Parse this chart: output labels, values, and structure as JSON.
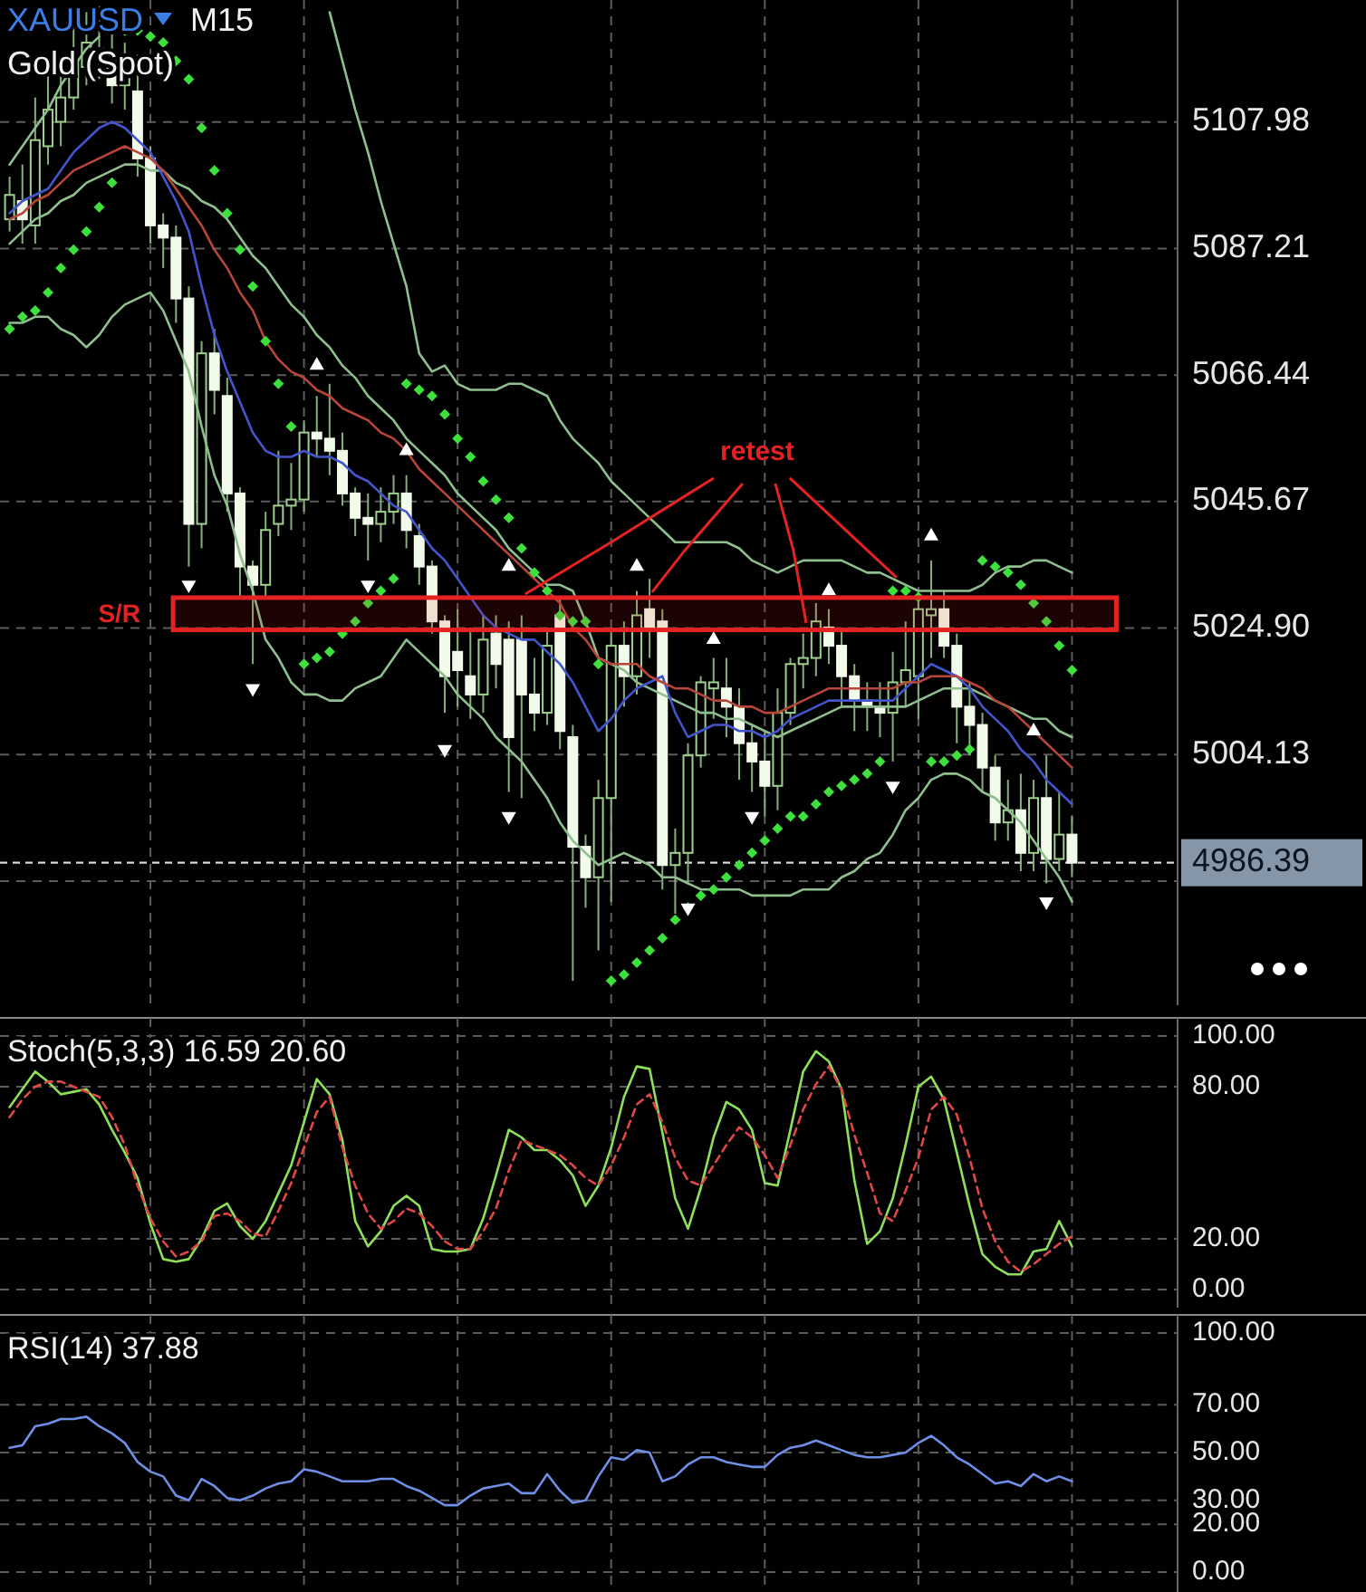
{
  "chart_data": [
    {
      "type": "candlestick",
      "title": "XAUUSD",
      "subtitle": "Gold (Spot)",
      "annotations": [
        "M15",
        "retest"
      ],
      "categories": [
        null,
        null,
        null,
        null,
        null,
        null,
        null,
        null,
        null,
        null,
        null,
        null,
        null,
        null,
        null,
        null,
        null,
        null,
        null,
        null,
        null,
        null,
        null,
        null,
        null,
        null,
        null,
        null,
        null,
        null,
        null,
        null,
        null,
        null,
        null,
        null,
        null,
        null,
        null,
        null,
        null,
        null,
        null,
        null,
        null,
        null,
        null,
        null,
        null,
        null,
        null,
        null,
        null,
        null,
        null,
        null,
        null,
        null,
        null,
        null,
        null,
        null,
        null,
        null,
        null,
        null,
        null,
        null,
        null,
        null,
        null,
        null,
        null,
        null,
        null,
        null,
        null,
        null,
        null,
        null,
        null,
        null,
        null,
        null
      ],
      "ohlc": [
        [
          5092,
          5099,
          5090,
          5096
        ],
        [
          5095,
          5101,
          5088,
          5092
        ],
        [
          5091,
          5112,
          5088,
          5105
        ],
        [
          5104,
          5116,
          5101,
          5110
        ],
        [
          5108,
          5118,
          5104,
          5112
        ],
        [
          5112,
          5124,
          5110,
          5118
        ],
        [
          5117,
          5126,
          5114,
          5121
        ],
        [
          5120,
          5127,
          5115,
          5119
        ],
        [
          5119,
          5123,
          5111,
          5114
        ],
        [
          5114,
          5121,
          5110,
          5116
        ],
        [
          5113,
          5119,
          5099,
          5102
        ],
        [
          5102,
          5104,
          5088,
          5091
        ],
        [
          5091,
          5093,
          5084,
          5089
        ],
        [
          5089,
          5091,
          5075,
          5079
        ],
        [
          5079,
          5081,
          5035,
          5042
        ],
        [
          5042,
          5072,
          5038,
          5070
        ],
        [
          5070,
          5074,
          5060,
          5064
        ],
        [
          5063,
          5066,
          5044,
          5047
        ],
        [
          5047,
          5048,
          5030,
          5035
        ],
        [
          5035,
          5036,
          5019,
          5032
        ],
        [
          5032,
          5044,
          5030,
          5041
        ],
        [
          5042,
          5054,
          5040,
          5045
        ],
        [
          5045,
          5052,
          5041,
          5046
        ],
        [
          5046,
          5059,
          5044,
          5057
        ],
        [
          5057,
          5063,
          5053,
          5056
        ],
        [
          5056,
          5065,
          5050,
          5054
        ],
        [
          5054,
          5057,
          5045,
          5047
        ],
        [
          5047,
          5048,
          5040,
          5043
        ],
        [
          5043,
          5047,
          5036,
          5042
        ],
        [
          5042,
          5048,
          5039,
          5044
        ],
        [
          5044,
          5050,
          5042,
          5047
        ],
        [
          5047,
          5050,
          5038,
          5041
        ],
        [
          5040,
          5042,
          5032,
          5035
        ],
        [
          5035,
          5036,
          5024,
          5026
        ],
        [
          5026,
          5027,
          5011,
          5017
        ],
        [
          5021,
          5028,
          5012,
          5018
        ],
        [
          5017,
          5025,
          5010,
          5014
        ],
        [
          5014,
          5027,
          5011,
          5023
        ],
        [
          5024,
          5027,
          5015,
          5019
        ],
        [
          5023,
          5026,
          4998,
          5007
        ],
        [
          5023,
          5027,
          4997,
          5014
        ],
        [
          5014,
          5020,
          5008,
          5011
        ],
        [
          5011,
          5025,
          5009,
          5022
        ],
        [
          5027,
          5030,
          5005,
          5008
        ],
        [
          5007,
          5009,
          4967,
          4989
        ],
        [
          4989,
          4991,
          4979,
          4984
        ],
        [
          4984,
          5000,
          4972,
          4997
        ],
        [
          4997,
          5025,
          4980,
          5022
        ],
        [
          5022,
          5026,
          5012,
          5017
        ],
        [
          5017,
          5031,
          5014,
          5027
        ],
        [
          5028,
          5033,
          5020,
          5025
        ],
        [
          5026,
          5028,
          4982,
          4986
        ],
        [
          4986,
          4992,
          4978,
          4988
        ],
        [
          4988,
          5006,
          4983,
          5004
        ],
        [
          5004,
          5017,
          5002,
          5016
        ],
        [
          5015,
          5020,
          5010,
          5016
        ],
        [
          5015,
          5020,
          5007,
          5012
        ],
        [
          5012,
          5015,
          5000,
          5006
        ],
        [
          5006,
          5009,
          4998,
          5003
        ],
        [
          5003,
          5008,
          4994,
          4999
        ],
        [
          4999,
          5015,
          4995,
          5011
        ],
        [
          5011,
          5020,
          5009,
          5019
        ],
        [
          5019,
          5024,
          5015,
          5020
        ],
        [
          5020,
          5029,
          5017,
          5026
        ],
        [
          5025,
          5028,
          5019,
          5022
        ],
        [
          5022,
          5025,
          5012,
          5017
        ],
        [
          5017,
          5019,
          5008,
          5013
        ],
        [
          5013,
          5016,
          5008,
          5012
        ],
        [
          5012,
          5016,
          5007,
          5011
        ],
        [
          5011,
          5021,
          5003,
          5016
        ],
        [
          5016,
          5026,
          5012,
          5018
        ],
        [
          5017,
          5030,
          5010,
          5028
        ],
        [
          5027,
          5036,
          5020,
          5028
        ],
        [
          5028,
          5031,
          5020,
          5022
        ],
        [
          5022,
          5024,
          5006,
          5012
        ],
        [
          5012,
          5016,
          5004,
          5009
        ],
        [
          5009,
          5011,
          4998,
          5002
        ],
        [
          5002,
          5004,
          4990,
          4993
        ],
        [
          4993,
          5000,
          4990,
          4995
        ],
        [
          4995,
          5001,
          4985,
          4988
        ],
        [
          4988,
          5000,
          4985,
          4997
        ],
        [
          4997,
          5004,
          4983,
          4987
        ],
        [
          4987,
          4998,
          4985,
          4991
        ],
        [
          4991,
          4994,
          4984,
          4986.39
        ]
      ],
      "series": [
        {
          "type": "line",
          "color": "#8fbf8f",
          "values": [
            5101,
            5104,
            5107,
            5110,
            5114,
            5117,
            5120,
            5122,
            null,
            null,
            null,
            null,
            null,
            null,
            null,
            null,
            null,
            null,
            null,
            null,
            null,
            null,
            null,
            null,
            null,
            5126,
            5118,
            5110,
            5103,
            5095,
            5088,
            5081,
            5070,
            5067,
            5068,
            5065,
            5064,
            5064,
            5064,
            5065,
            5065,
            5064,
            5063,
            5059,
            5056,
            5054,
            5052,
            5049,
            5047,
            5045,
            5043,
            5041,
            5039,
            5039,
            5039,
            5039,
            5039,
            5038,
            5036,
            5035,
            5034,
            5035,
            5036,
            5036,
            5036,
            5036,
            5035,
            5034,
            5034,
            5033,
            5032,
            5031,
            5031,
            5031,
            5031,
            5031,
            5032,
            5034,
            5035,
            5035,
            5036,
            5036,
            5035,
            5034
          ]
        },
        {
          "type": "line",
          "color": "#8fbf8f",
          "values": [
            5088,
            5090,
            5092,
            5093,
            5095,
            5096,
            5098,
            5099,
            5100,
            5101,
            5101,
            5100,
            5100,
            5098,
            5097,
            5095,
            5094,
            5092,
            5089,
            5086,
            5084,
            5081,
            5078,
            5076,
            5073,
            5071,
            5068,
            5066,
            5063,
            5061,
            5059,
            5056,
            5054,
            5052,
            5050,
            5047,
            5045,
            5043,
            5041,
            5038,
            5036,
            5034,
            5032,
            5032,
            5031,
            5026,
            5020,
            5019,
            5018,
            5016,
            5015,
            5014,
            5013,
            5012,
            5011,
            5011,
            5010,
            5010,
            5009,
            5008,
            5007,
            5008,
            5009,
            5010,
            5011,
            5012,
            5012,
            5012,
            5012,
            5012,
            5012,
            5013,
            5014,
            5015,
            5015,
            5015,
            5014,
            5013,
            5012,
            5011,
            5010,
            5010,
            5008,
            5007
          ]
        },
        {
          "type": "line",
          "color": "#8fbf8f",
          "values": [
            5075,
            5075,
            5076,
            5076,
            5074,
            5073,
            5071,
            5073,
            5076,
            5078,
            5079,
            5080,
            5077,
            5072,
            5067,
            5058,
            5050,
            5045,
            5037,
            5031,
            5023,
            5020,
            5016,
            5014,
            5014,
            5013,
            5013,
            5015,
            5016,
            5017,
            5020,
            5023,
            5021,
            5019,
            5017,
            5014,
            5012,
            5010,
            5007,
            5005,
            5003,
            5000,
            4997,
            4993,
            4990,
            4988,
            4986,
            4987,
            4988,
            4987,
            4986,
            4984,
            4984,
            4983,
            4982,
            4982,
            4982,
            4982,
            4981,
            4981,
            4981,
            4981,
            4982,
            4982,
            4982,
            4984,
            4985,
            4987,
            4988,
            4991,
            4995,
            4997,
            5000,
            5001,
            5001,
            5000,
            4998,
            4997,
            4995,
            4993,
            4990,
            4987,
            4984,
            4980
          ]
        },
        {
          "type": "line",
          "color": "#4455cc",
          "values": [
            5093,
            5095,
            5096,
            5097,
            5100,
            5103,
            5105,
            5107,
            5108,
            5107,
            5105,
            5103,
            5099,
            5095,
            5090,
            5081,
            5073,
            5067,
            5062,
            5057,
            5054,
            5053,
            5053,
            5054,
            5053,
            5053,
            5052,
            5050,
            5049,
            5047,
            5045,
            5044,
            5041,
            5038,
            5036,
            5033,
            5030,
            5027,
            5025,
            5024,
            5023,
            5023,
            5021,
            5019,
            5016,
            5012,
            5008,
            5010,
            5013,
            5015,
            5016,
            5017,
            5011,
            5007,
            5008,
            5009,
            5009,
            5008,
            5008,
            5007,
            5008,
            5010,
            5011,
            5012,
            5013,
            5013,
            5013,
            5013,
            5013,
            5013,
            5015,
            5017,
            5019,
            5018,
            5017,
            5015,
            5012,
            5010,
            5008,
            5005,
            5003,
            5000,
            4998,
            4996
          ]
        },
        {
          "type": "line",
          "color": "#b8453a",
          "values": [
            5092,
            5093,
            5095,
            5096,
            5098,
            5100,
            5101,
            5102,
            5103,
            5104,
            5103,
            5102,
            5100,
            5097,
            5094,
            5091,
            5087,
            5084,
            5080,
            5077,
            5072,
            5069,
            5067,
            5066,
            5064,
            5063,
            5061,
            5060,
            5059,
            5057,
            5056,
            5054,
            5051,
            5049,
            5047,
            5045,
            5043,
            5041,
            5039,
            5037,
            5035,
            5033,
            5031,
            5029,
            5025,
            5023,
            5020,
            5019,
            5019,
            5019,
            5017,
            5016,
            5015,
            5015,
            5014,
            5013,
            5013,
            5012,
            5012,
            5011,
            5011,
            5012,
            5013,
            5014,
            5015,
            5015,
            5015,
            5015,
            5015,
            5015,
            5016,
            5016,
            5017,
            5017,
            5017,
            5016,
            5015,
            5013,
            5012,
            5010,
            5008,
            5006,
            5004,
            5002
          ]
        },
        {
          "type": "scatter",
          "marker": "diamond",
          "color": "#3ee03e",
          "values": [
            5074,
            5076,
            5077,
            5080,
            5084,
            5087,
            5090,
            5094,
            5098,
            5123,
            5123,
            5122,
            5121,
            5118,
            5115,
            5107,
            5100,
            5093,
            5087,
            5081,
            5072,
            5065,
            5058,
            5019,
            5020,
            5021,
            5024,
            5026,
            5029,
            5031,
            5033,
            5065,
            5064,
            5063,
            5060,
            5056,
            5053,
            5049,
            5046,
            5043,
            5038,
            5034,
            5031,
            5027,
            5026,
            5026,
            5019,
            4967,
            4968,
            4970,
            4972,
            4974,
            4977,
            4979,
            4981,
            4982,
            4984,
            4986,
            4988,
            4990,
            4992,
            4994,
            4994,
            4996,
            4998,
            4999,
            5000,
            5001,
            5003,
            5031,
            5031,
            5030,
            5003,
            5003,
            5004,
            5005,
            5036,
            5035,
            5034,
            5032,
            5029,
            5026,
            5022,
            5018
          ]
        },
        {
          "type": "scatter",
          "marker": "triangle",
          "color": "#ffffff",
          "values": [
            null,
            null,
            null,
            null,
            null,
            null,
            null,
            null,
            null,
            null,
            null,
            null,
            null,
            null,
            null,
            null,
            null,
            null,
            null,
            null,
            null,
            null,
            null,
            null,
            5068,
            null,
            null,
            null,
            null,
            null,
            null,
            5054,
            null,
            null,
            null,
            null,
            null,
            null,
            null,
            5035,
            null,
            null,
            null,
            null,
            null,
            null,
            null,
            null,
            null,
            5035,
            null,
            null,
            null,
            null,
            null,
            5023,
            null,
            null,
            null,
            null,
            null,
            null,
            null,
            null,
            5031,
            null,
            null,
            null,
            null,
            null,
            null,
            null,
            5040,
            null,
            null,
            null,
            null,
            null,
            null,
            null,
            5008,
            null,
            null,
            null
          ]
        },
        {
          "type": "scatter",
          "marker": "triangle",
          "color": "#ffffff",
          "values": [
            null,
            null,
            null,
            null,
            null,
            null,
            null,
            null,
            null,
            null,
            null,
            null,
            null,
            null,
            5032,
            null,
            null,
            null,
            null,
            5015,
            null,
            null,
            null,
            null,
            null,
            null,
            null,
            null,
            5032,
            null,
            null,
            null,
            null,
            null,
            5005,
            null,
            null,
            null,
            null,
            4994,
            null,
            null,
            null,
            null,
            null,
            null,
            null,
            null,
            null,
            null,
            null,
            null,
            null,
            4979,
            null,
            null,
            null,
            null,
            4994,
            null,
            null,
            null,
            null,
            null,
            null,
            null,
            null,
            null,
            null,
            4999,
            null,
            null,
            null,
            null,
            null,
            null,
            null,
            null,
            null,
            null,
            null,
            4980,
            null,
            null
          ]
        }
      ],
      "ylim": [
        4963,
        5128
      ],
      "yticks": [
        {
          "value": 4983.36,
          "label": null
        },
        5004.13,
        {
          "value": 5024.9,
          "label": "5024.90"
        },
        5045.67,
        5066.44,
        5087.21,
        5107.98
      ],
      "grid": true,
      "ref_lines": [
        {
          "axis": "y",
          "value": 4986.39,
          "label": "4986.39",
          "color": "#d8d8d8",
          "line_style": "dashed"
        }
      ],
      "bands": [
        {
          "axis": "y",
          "from": 5024.6,
          "to": 5029.9,
          "label": "S/R",
          "color": "#e52222"
        }
      ]
    },
    {
      "type": "line",
      "title": "Stoch(5,3,3) 16.59 20.60",
      "categories": [
        null,
        null,
        null,
        null,
        null,
        null,
        null,
        null,
        null,
        null,
        null,
        null,
        null,
        null,
        null,
        null,
        null,
        null,
        null,
        null,
        null,
        null,
        null,
        null,
        null,
        null,
        null,
        null,
        null,
        null,
        null,
        null,
        null,
        null,
        null,
        null,
        null,
        null,
        null,
        null,
        null,
        null,
        null,
        null,
        null,
        null,
        null,
        null,
        null,
        null,
        null,
        null,
        null,
        null,
        null,
        null,
        null,
        null,
        null,
        null,
        null,
        null,
        null,
        null,
        null,
        null,
        null,
        null,
        null,
        null,
        null,
        null,
        null,
        null,
        null,
        null,
        null,
        null,
        null,
        null,
        null,
        null,
        null,
        null
      ],
      "series": [
        {
          "color": "#8ee05a",
          "values": [
            72,
            79,
            86,
            82,
            77,
            78,
            79,
            73,
            63,
            54,
            44,
            26,
            12,
            11,
            12,
            20,
            31,
            34,
            25,
            20,
            27,
            38,
            49,
            66,
            83,
            77,
            59,
            27,
            17,
            23,
            33,
            37,
            33,
            16,
            15,
            15,
            16,
            28,
            45,
            63,
            60,
            55,
            55,
            51,
            45,
            33,
            41,
            56,
            76,
            88,
            87,
            62,
            36,
            24,
            40,
            60,
            74,
            71,
            63,
            42,
            41,
            63,
            86,
            94,
            90,
            79,
            43,
            18,
            23,
            36,
            57,
            80,
            84,
            75,
            54,
            33,
            14,
            9,
            6,
            6,
            15,
            16,
            27,
            17
          ]
        },
        {
          "color": "#e04848",
          "line_style": "dashed",
          "values": [
            68,
            75,
            80,
            82,
            82,
            80,
            78,
            76,
            68,
            57,
            41,
            28,
            19,
            13,
            15,
            19,
            29,
            30,
            27,
            22,
            21,
            31,
            42,
            56,
            70,
            76,
            56,
            41,
            30,
            24,
            27,
            32,
            30,
            25,
            19,
            16,
            16,
            23,
            32,
            47,
            59,
            57,
            55,
            53,
            49,
            44,
            41,
            49,
            60,
            73,
            77,
            66,
            52,
            43,
            41,
            49,
            57,
            64,
            60,
            53,
            44,
            57,
            71,
            81,
            88,
            79,
            61,
            46,
            30,
            27,
            39,
            52,
            71,
            76,
            69,
            52,
            32,
            19,
            11,
            7,
            10,
            14,
            18,
            21
          ]
        }
      ],
      "ylim": [
        0,
        100
      ],
      "yticks": [
        {
          "value": 0,
          "label": "0.00"
        },
        {
          "value": 20,
          "label": "20.00"
        },
        {
          "value": 80,
          "label": "80.00"
        },
        {
          "value": 100,
          "label": "100.00"
        }
      ],
      "grid": true
    },
    {
      "type": "line",
      "title": "RSI(14) 37.88",
      "categories": [
        null,
        null,
        null,
        null,
        null,
        null,
        null,
        null,
        null,
        null,
        null,
        null,
        null,
        null,
        null,
        null,
        null,
        null,
        null,
        null,
        null,
        null,
        null,
        null,
        null,
        null,
        null,
        null,
        null,
        null,
        null,
        null,
        null,
        null,
        null,
        null,
        null,
        null,
        null,
        null,
        null,
        null,
        null,
        null,
        null,
        null,
        null,
        null,
        null,
        null,
        null,
        null,
        null,
        null,
        null,
        null,
        null,
        null,
        null,
        null,
        null,
        null,
        null,
        null,
        null,
        null,
        null,
        null,
        null,
        null,
        null,
        null,
        null,
        null,
        null,
        null,
        null,
        null,
        null,
        null,
        null,
        null,
        null,
        null
      ],
      "series": [
        {
          "color": "#6f8fe6",
          "values": [
            52,
            53,
            61,
            62,
            64,
            64,
            65,
            61,
            58,
            54,
            46,
            42,
            40,
            32,
            30,
            39,
            36,
            31,
            30,
            32,
            35,
            37,
            38,
            43,
            42,
            40,
            38,
            38,
            38,
            39,
            39,
            36,
            34,
            31,
            28,
            28,
            32,
            35,
            36,
            37,
            33,
            33,
            41,
            34,
            29,
            30,
            40,
            48,
            47,
            51,
            50,
            38,
            40,
            45,
            48,
            48,
            46,
            45,
            44,
            44,
            49,
            52,
            53,
            55,
            53,
            51,
            49,
            48,
            48,
            49,
            50,
            54,
            57,
            53,
            48,
            45,
            41,
            37,
            38,
            36,
            41,
            38,
            40,
            38
          ]
        }
      ],
      "ylim": [
        0,
        100
      ],
      "yticks": [
        {
          "value": 0,
          "label": "0.00"
        },
        {
          "value": 20,
          "label": "20.00"
        },
        {
          "value": 30,
          "label": "30.00"
        },
        {
          "value": 50,
          "label": "50.00"
        },
        {
          "value": 70,
          "label": "70.00"
        },
        {
          "value": 100,
          "label": "100.00"
        }
      ],
      "grid": true
    }
  ]
}
